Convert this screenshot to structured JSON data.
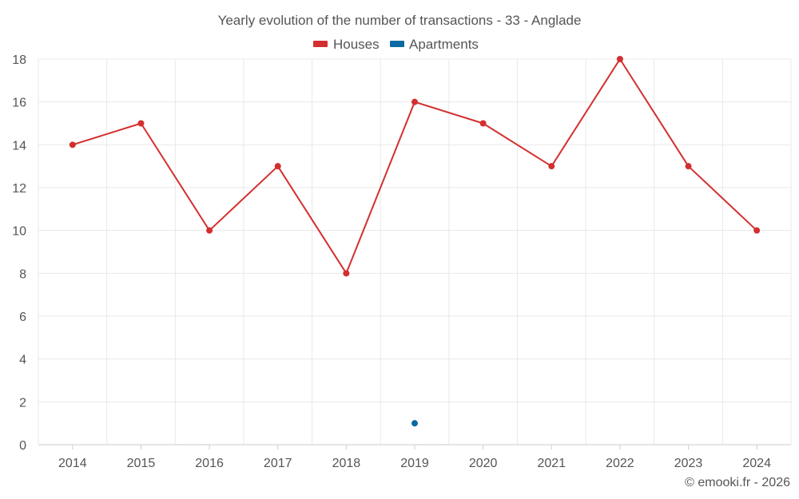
{
  "chart_data": {
    "type": "line",
    "title": "Yearly evolution of the number of transactions - 33 - Anglade",
    "categories": [
      "2014",
      "2015",
      "2016",
      "2017",
      "2018",
      "2019",
      "2020",
      "2021",
      "2022",
      "2023",
      "2024"
    ],
    "series": [
      {
        "name": "Houses",
        "color": "#d32f2f",
        "values": [
          14,
          15,
          10,
          13,
          8,
          16,
          15,
          13,
          18,
          13,
          10
        ]
      },
      {
        "name": "Apartments",
        "color": "#0a6aa1",
        "values": [
          null,
          null,
          null,
          null,
          null,
          1,
          null,
          null,
          null,
          null,
          null
        ]
      }
    ],
    "ylim": [
      0,
      18
    ],
    "yticks": [
      0,
      2,
      4,
      6,
      8,
      10,
      12,
      14,
      16,
      18
    ],
    "xlabel": "",
    "ylabel": "",
    "grid": true,
    "legend": "top-center"
  },
  "credit": "© emooki.fr - 2026"
}
